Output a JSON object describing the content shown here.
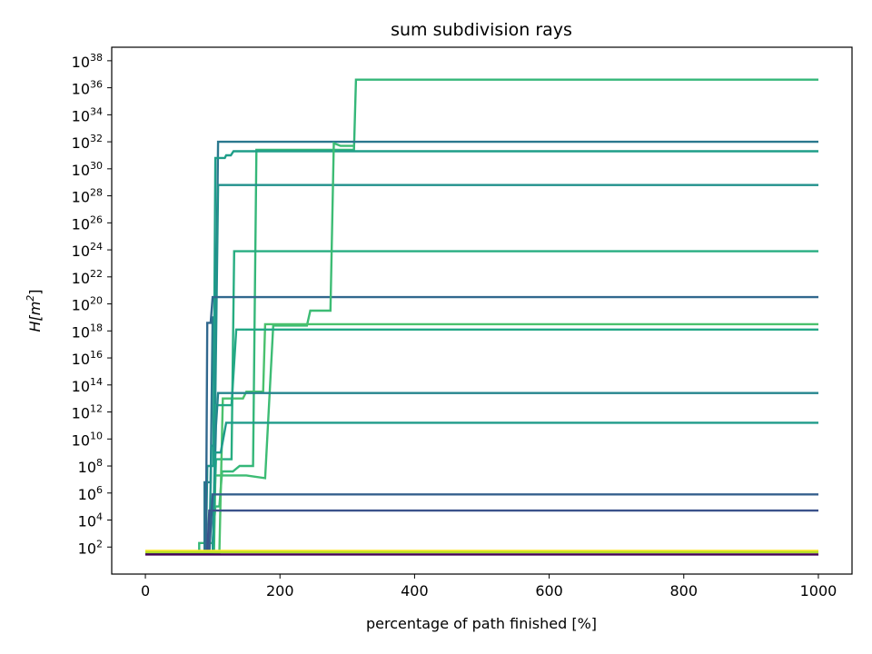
{
  "chart_data": {
    "type": "line",
    "title": "sum subdivision rays",
    "xlabel": "percentage of path finished [%]",
    "ylabel_base": "H[m",
    "ylabel_sup": "2",
    "ylabel_close": "]",
    "y_scale": "log",
    "xlim": [
      -50,
      1050
    ],
    "ylim_exponent": [
      0,
      39
    ],
    "x_ticks": [
      {
        "value": 0,
        "label": "0"
      },
      {
        "value": 200,
        "label": "200"
      },
      {
        "value": 400,
        "label": "400"
      },
      {
        "value": 600,
        "label": "600"
      },
      {
        "value": 800,
        "label": "800"
      },
      {
        "value": 1000,
        "label": "1000"
      }
    ],
    "y_ticks": [
      {
        "exp": 2,
        "base": "10",
        "sup": "2"
      },
      {
        "exp": 4,
        "base": "10",
        "sup": "4"
      },
      {
        "exp": 6,
        "base": "10",
        "sup": "6"
      },
      {
        "exp": 8,
        "base": "10",
        "sup": "8"
      },
      {
        "exp": 10,
        "base": "10",
        "sup": "10"
      },
      {
        "exp": 12,
        "base": "10",
        "sup": "12"
      },
      {
        "exp": 14,
        "base": "10",
        "sup": "14"
      },
      {
        "exp": 16,
        "base": "10",
        "sup": "16"
      },
      {
        "exp": 18,
        "base": "10",
        "sup": "18"
      },
      {
        "exp": 20,
        "base": "10",
        "sup": "20"
      },
      {
        "exp": 22,
        "base": "10",
        "sup": "22"
      },
      {
        "exp": 24,
        "base": "10",
        "sup": "24"
      },
      {
        "exp": 26,
        "base": "10",
        "sup": "26"
      },
      {
        "exp": 28,
        "base": "10",
        "sup": "28"
      },
      {
        "exp": 30,
        "base": "10",
        "sup": "30"
      },
      {
        "exp": 32,
        "base": "10",
        "sup": "32"
      },
      {
        "exp": 34,
        "base": "10",
        "sup": "34"
      },
      {
        "exp": 36,
        "base": "10",
        "sup": "36"
      },
      {
        "exp": 38,
        "base": "10",
        "sup": "38"
      }
    ],
    "grid": false,
    "legend": "none",
    "series": [
      {
        "color": "#35b779",
        "points": [
          [
            0,
            1.6
          ],
          [
            80,
            1.6
          ],
          [
            80,
            2.3
          ],
          [
            100,
            2.3
          ],
          [
            104,
            5.0
          ],
          [
            110,
            5.0
          ],
          [
            114,
            7.6
          ],
          [
            130,
            7.6
          ],
          [
            140,
            8.0
          ],
          [
            160,
            8.0
          ],
          [
            165,
            31.4
          ],
          [
            250,
            31.4
          ],
          [
            310,
            31.4
          ],
          [
            313,
            36.6
          ],
          [
            1000,
            36.6
          ]
        ]
      },
      {
        "color": "#2a788e",
        "points": [
          [
            0,
            1.5
          ],
          [
            88,
            1.5
          ],
          [
            88,
            6.8
          ],
          [
            97,
            6.8
          ],
          [
            100,
            19.0
          ],
          [
            105,
            19.0
          ],
          [
            108,
            32.0
          ],
          [
            1000,
            32.0
          ]
        ]
      },
      {
        "color": "#1f9e89",
        "points": [
          [
            0,
            1.5
          ],
          [
            90,
            1.5
          ],
          [
            92,
            8.0
          ],
          [
            101,
            8.0
          ],
          [
            104,
            30.8
          ],
          [
            118,
            30.8
          ],
          [
            120,
            31.0
          ],
          [
            127,
            31.0
          ],
          [
            131,
            31.3
          ],
          [
            1000,
            31.3
          ]
        ]
      },
      {
        "color": "#21918c",
        "points": [
          [
            0,
            1.5
          ],
          [
            95,
            1.5
          ],
          [
            98,
            9.5
          ],
          [
            103,
            9.5
          ],
          [
            108,
            28.8
          ],
          [
            1000,
            28.8
          ]
        ]
      },
      {
        "color": "#27ad81",
        "points": [
          [
            0,
            1.5
          ],
          [
            100,
            1.5
          ],
          [
            105,
            8.5
          ],
          [
            128,
            8.5
          ],
          [
            132,
            23.9
          ],
          [
            1000,
            23.9
          ]
        ]
      },
      {
        "color": "#31688e",
        "points": [
          [
            0,
            1.5
          ],
          [
            90,
            1.5
          ],
          [
            92,
            18.6
          ],
          [
            97,
            18.6
          ],
          [
            100,
            20.5
          ],
          [
            1000,
            20.5
          ]
        ]
      },
      {
        "color": "#3dbc74",
        "points": [
          [
            0,
            1.5
          ],
          [
            102,
            1.5
          ],
          [
            104,
            7.3
          ],
          [
            150,
            7.3
          ],
          [
            178,
            7.1
          ],
          [
            190,
            18.4
          ],
          [
            240,
            18.4
          ],
          [
            245,
            19.5
          ],
          [
            275,
            19.5
          ],
          [
            280,
            31.9
          ],
          [
            290,
            31.7
          ],
          [
            310,
            31.7
          ]
        ]
      },
      {
        "color": "#4ac16d",
        "points": [
          [
            0,
            1.5
          ],
          [
            110,
            1.5
          ],
          [
            115,
            13.0
          ],
          [
            145,
            13.0
          ],
          [
            150,
            13.5
          ],
          [
            175,
            13.5
          ],
          [
            178,
            18.5
          ],
          [
            1000,
            18.5
          ]
        ]
      },
      {
        "color": "#22a785",
        "points": [
          [
            0,
            1.5
          ],
          [
            100,
            1.5
          ],
          [
            105,
            12.5
          ],
          [
            128,
            12.5
          ],
          [
            135,
            18.1
          ],
          [
            1000,
            18.1
          ]
        ]
      },
      {
        "color": "#25858e",
        "points": [
          [
            0,
            1.5
          ],
          [
            100,
            1.5
          ],
          [
            105,
            11.0
          ],
          [
            108,
            13.4
          ],
          [
            1000,
            13.4
          ]
        ]
      },
      {
        "color": "#1e9b8a",
        "points": [
          [
            0,
            1.5
          ],
          [
            100,
            1.5
          ],
          [
            104,
            9.0
          ],
          [
            112,
            9.0
          ],
          [
            120,
            11.2
          ],
          [
            1000,
            11.2
          ]
        ]
      },
      {
        "color": "#3b528b",
        "points": [
          [
            0,
            1.5
          ],
          [
            92,
            1.5
          ],
          [
            95,
            4.7
          ],
          [
            1000,
            4.7
          ]
        ]
      },
      {
        "color": "#35608d",
        "points": [
          [
            0,
            1.5
          ],
          [
            95,
            1.5
          ],
          [
            100,
            5.9
          ],
          [
            1000,
            5.9
          ]
        ]
      },
      {
        "color": "#fde725",
        "points": [
          [
            0,
            1.72
          ],
          [
            1000,
            1.72
          ]
        ]
      },
      {
        "color": "#b5de2b",
        "points": [
          [
            0,
            1.62
          ],
          [
            1000,
            1.62
          ]
        ]
      },
      {
        "color": "#440154",
        "points": [
          [
            0,
            1.45
          ],
          [
            1000,
            1.45
          ]
        ]
      }
    ]
  }
}
